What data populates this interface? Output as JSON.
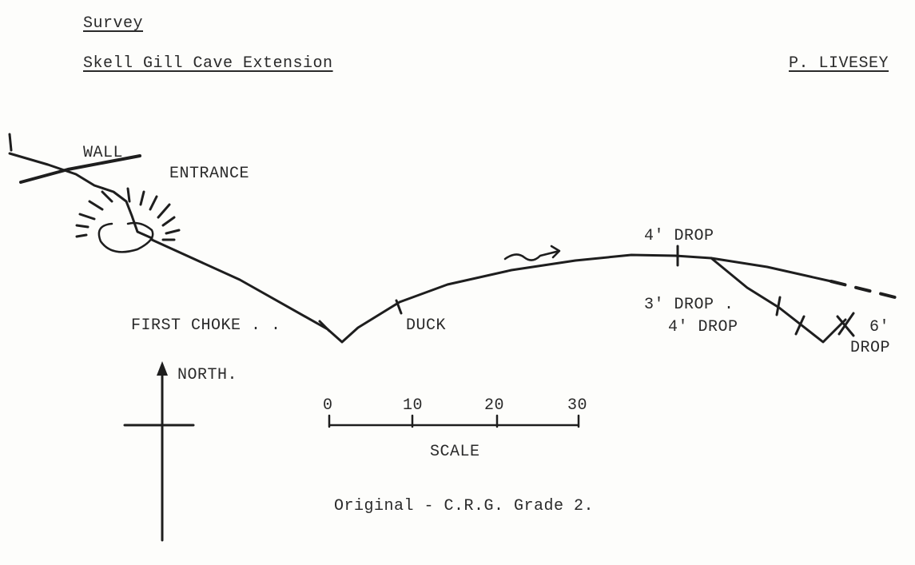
{
  "header": {
    "section": "Survey",
    "title": "Skell Gill Cave Extension",
    "author": "P. LIVESEY"
  },
  "labels": {
    "wall": "WALL",
    "entrance": "ENTRANCE",
    "first_choke": "FIRST CHOKE . .",
    "duck": "DUCK",
    "drop_4_top": "4' DROP",
    "drop_3": "3' DROP .",
    "drop_4_lower": "4' DROP",
    "drop_6_num": "6'",
    "drop_6_word": "DROP",
    "north": "NORTH."
  },
  "scale": {
    "ticks": [
      "0",
      "10",
      "20",
      "30"
    ],
    "label": "SCALE"
  },
  "footer": {
    "note": "Original - C.R.G.  Grade 2."
  },
  "colors": {
    "ink": "#1e1e1e",
    "paper": "#fdfdfb"
  }
}
